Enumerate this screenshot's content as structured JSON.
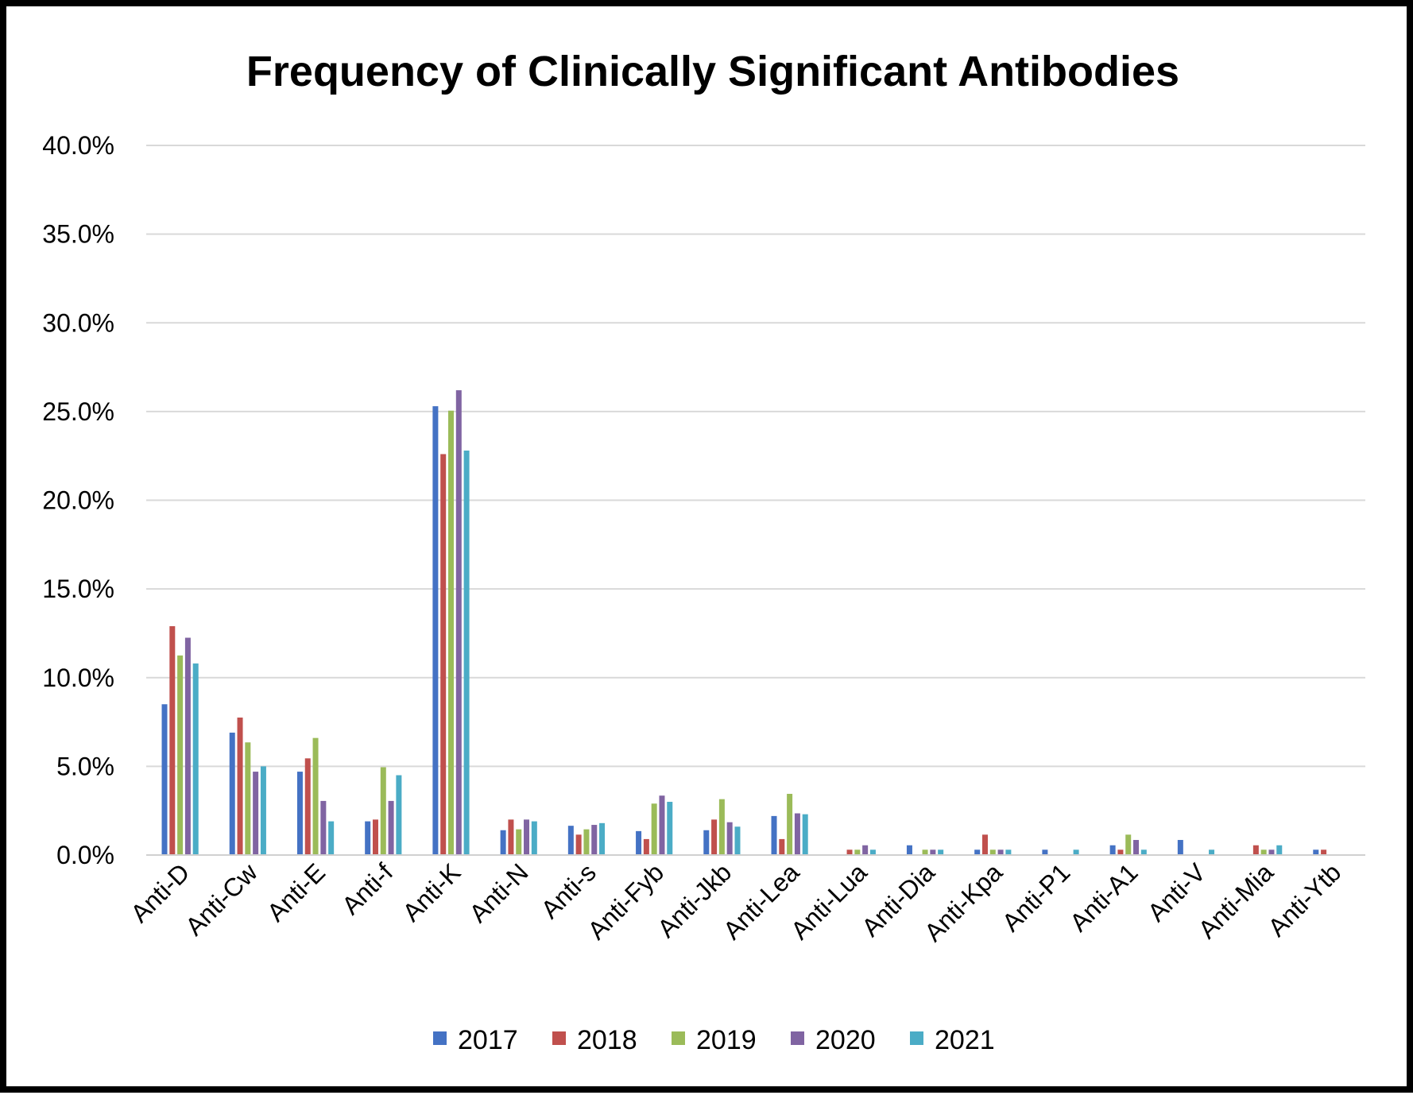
{
  "chart_data": {
    "type": "bar",
    "title": "Frequency of Clinically Significant Antibodies",
    "xlabel": "",
    "ylabel": "",
    "ylim": [
      0,
      40
    ],
    "yticks": [
      "0.0%",
      "5.0%",
      "10.0%",
      "15.0%",
      "20.0%",
      "25.0%",
      "30.0%",
      "35.0%",
      "40.0%"
    ],
    "grid": true,
    "legend_position": "bottom",
    "categories": [
      "Anti-D",
      "Anti-Cw",
      "Anti-E",
      "Anti-f",
      "Anti-K",
      "Anti-N",
      "Anti-s",
      "Anti-Fyb",
      "Anti-Jkb",
      "Anti-Lea",
      "Anti-Lua",
      "Anti-Dia",
      "Anti-Kpa",
      "Anti-P1",
      "Anti-A1",
      "Anti-V",
      "Anti-Mia",
      "Anti-Ytb"
    ],
    "series": [
      {
        "name": "2017",
        "color": "#4472c4",
        "values": [
          8.5,
          6.9,
          4.7,
          1.9,
          25.3,
          1.4,
          1.65,
          1.35,
          1.4,
          2.2,
          0,
          0.55,
          0.3,
          0.3,
          0.55,
          0.85,
          0,
          0.3
        ]
      },
      {
        "name": "2018",
        "color": "#c0504d",
        "values": [
          12.9,
          7.75,
          5.45,
          2.0,
          22.6,
          2.0,
          1.15,
          0.9,
          2.0,
          0.9,
          0.3,
          0,
          1.15,
          0,
          0.3,
          0,
          0.55,
          0.3
        ]
      },
      {
        "name": "2019",
        "color": "#9bbb59",
        "values": [
          11.25,
          6.35,
          6.6,
          4.95,
          25.05,
          1.45,
          1.45,
          2.9,
          3.15,
          3.45,
          0.3,
          0.3,
          0.3,
          0,
          1.15,
          0,
          0.3,
          0
        ]
      },
      {
        "name": "2020",
        "color": "#8064a2",
        "values": [
          12.25,
          4.7,
          3.05,
          3.05,
          26.2,
          2.0,
          1.7,
          3.35,
          1.85,
          2.35,
          0.55,
          0.3,
          0.3,
          0,
          0.85,
          0,
          0.3,
          0
        ]
      },
      {
        "name": "2021",
        "color": "#4bacc6",
        "values": [
          10.8,
          5.0,
          1.9,
          4.5,
          22.8,
          1.9,
          1.8,
          3.0,
          1.6,
          2.3,
          0.3,
          0.3,
          0.3,
          0.3,
          0.3,
          0.3,
          0.55,
          0
        ]
      }
    ]
  }
}
